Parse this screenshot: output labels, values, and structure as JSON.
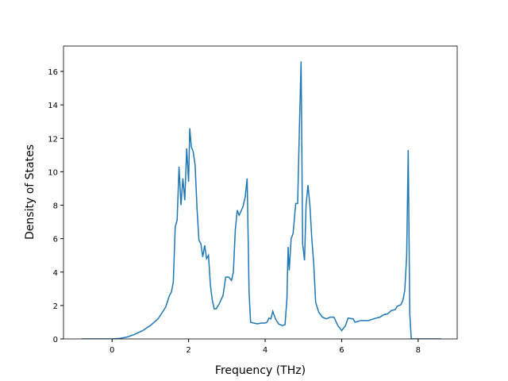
{
  "chart_data": {
    "type": "line",
    "x_label": "Frequency (THz)",
    "y_label": "Density of States",
    "x": [
      -0.8,
      0,
      0.2,
      0.4,
      0.6,
      0.8,
      1.0,
      1.2,
      1.3,
      1.4,
      1.5,
      1.55,
      1.6,
      1.65,
      1.7,
      1.75,
      1.8,
      1.85,
      1.9,
      1.95,
      2.0,
      2.03,
      2.07,
      2.12,
      2.17,
      2.22,
      2.27,
      2.32,
      2.37,
      2.42,
      2.47,
      2.52,
      2.57,
      2.62,
      2.67,
      2.72,
      2.8,
      2.9,
      2.97,
      3.05,
      3.12,
      3.17,
      3.22,
      3.27,
      3.32,
      3.42,
      3.48,
      3.53,
      3.58,
      3.62,
      3.7,
      3.8,
      3.9,
      4.0,
      4.05,
      4.1,
      4.15,
      4.2,
      4.27,
      4.35,
      4.45,
      4.52,
      4.57,
      4.6,
      4.63,
      4.68,
      4.73,
      4.8,
      4.85,
      4.9,
      4.94,
      4.98,
      5.03,
      5.07,
      5.12,
      5.17,
      5.22,
      5.27,
      5.32,
      5.4,
      5.5,
      5.6,
      5.7,
      5.8,
      5.9,
      6.0,
      6.1,
      6.17,
      6.3,
      6.35,
      6.5,
      6.7,
      6.9,
      7.0,
      7.1,
      7.2,
      7.3,
      7.4,
      7.45,
      7.55,
      7.6,
      7.65,
      7.7,
      7.74,
      7.78,
      7.82,
      8.6
    ],
    "series": [
      {
        "color": "#1f77b4",
        "values": [
          0,
          0,
          0.03,
          0.12,
          0.28,
          0.5,
          0.8,
          1.2,
          1.55,
          1.9,
          2.6,
          2.8,
          3.4,
          6.7,
          7.1,
          10.3,
          8.0,
          9.6,
          8.3,
          11.4,
          9.4,
          12.6,
          11.5,
          11.2,
          10.4,
          7.8,
          5.9,
          5.7,
          4.9,
          5.6,
          4.8,
          5.0,
          3.2,
          2.3,
          1.8,
          1.8,
          2.1,
          2.6,
          3.7,
          3.7,
          3.5,
          4.0,
          6.5,
          7.7,
          7.4,
          7.9,
          8.5,
          9.6,
          2.8,
          1.0,
          0.95,
          0.9,
          0.95,
          0.95,
          1.0,
          1.25,
          1.2,
          1.65,
          1.2,
          0.9,
          0.8,
          0.85,
          2.4,
          5.5,
          4.1,
          6.0,
          6.3,
          8.1,
          8.1,
          13.0,
          16.6,
          5.7,
          4.7,
          8.0,
          9.2,
          8.0,
          6.0,
          4.5,
          2.2,
          1.6,
          1.3,
          1.2,
          1.3,
          1.3,
          0.8,
          0.5,
          0.8,
          1.25,
          1.2,
          1.0,
          1.1,
          1.1,
          1.25,
          1.3,
          1.45,
          1.5,
          1.7,
          1.75,
          1.95,
          2.05,
          2.3,
          2.9,
          5.0,
          11.3,
          1.5,
          0,
          0
        ]
      }
    ],
    "xlim": [
      -1.27,
      9.02
    ],
    "ylim": [
      0,
      17.52
    ],
    "xticks": [
      0,
      2,
      4,
      6,
      8
    ],
    "yticks": [
      0,
      2,
      4,
      6,
      8,
      10,
      12,
      14,
      16
    ]
  }
}
